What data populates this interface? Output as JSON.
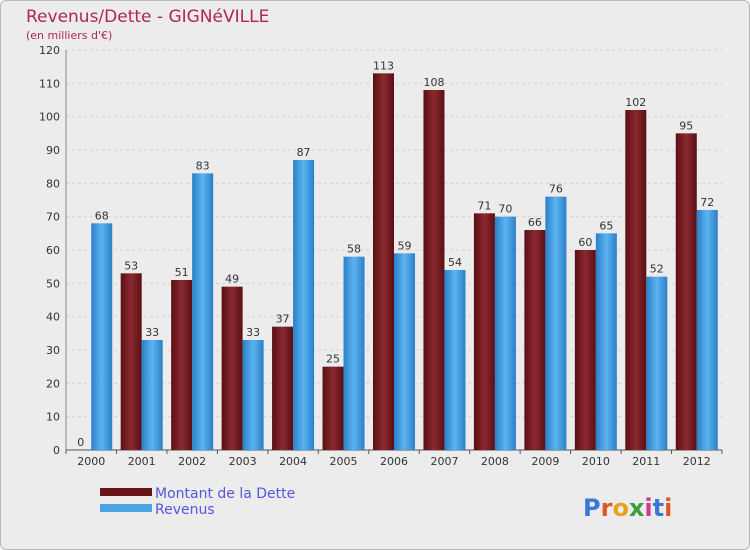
{
  "chart_data": {
    "type": "bar",
    "title": "Revenus/Dette - GIGNéVILLE",
    "subtitle": "(en milliers d'€)",
    "categories": [
      "2000",
      "2001",
      "2002",
      "2003",
      "2004",
      "2005",
      "2006",
      "2007",
      "2008",
      "2009",
      "2010",
      "2011",
      "2012"
    ],
    "series": [
      {
        "name": "Montant de la Dette",
        "color": "#7a1d22",
        "values": [
          0,
          53,
          51,
          49,
          37,
          25,
          113,
          108,
          71,
          66,
          60,
          102,
          95
        ]
      },
      {
        "name": "Revenus",
        "color": "#4aa3e3",
        "values": [
          68,
          33,
          83,
          33,
          87,
          58,
          59,
          54,
          70,
          76,
          65,
          52,
          72
        ]
      }
    ],
    "yticks": [
      0,
      10,
      20,
      30,
      40,
      50,
      60,
      70,
      80,
      90,
      100,
      110,
      120
    ],
    "ylim": [
      0,
      120
    ],
    "grid": true,
    "legend": "bottom-left"
  },
  "brand": {
    "logo_text": "Proxiti",
    "letters": [
      "P",
      "r",
      "o",
      "x",
      "i",
      "t",
      "i"
    ],
    "letter_colors": [
      "#3a78d6",
      "#e0562a",
      "#e8a21f",
      "#3a9d3a",
      "#d23a8e",
      "#3a78d6",
      "#e0562a"
    ]
  }
}
